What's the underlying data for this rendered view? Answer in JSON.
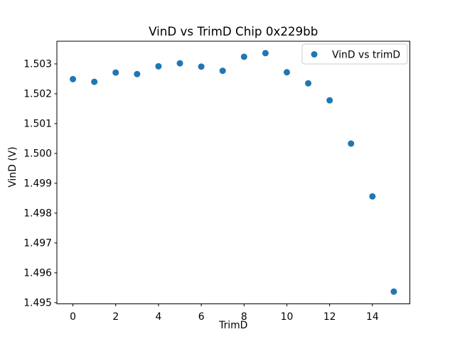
{
  "chart_data": {
    "type": "scatter",
    "title": "VinD vs TrimD Chip 0x229bb",
    "xlabel": "TrimD",
    "ylabel": "VinD (V)",
    "legend": {
      "label": "VinD vs trimD",
      "position": "upper-right"
    },
    "marker_color": "#1f77b4",
    "legend_border_color": "#cccccc",
    "x": [
      0,
      1,
      2,
      3,
      4,
      5,
      6,
      7,
      8,
      9,
      10,
      11,
      12,
      13,
      14,
      15
    ],
    "y": [
      1.50249,
      1.5024,
      1.50271,
      1.50266,
      1.50292,
      1.50302,
      1.50291,
      1.50277,
      1.50324,
      1.50336,
      1.50272,
      1.50235,
      1.50178,
      1.50033,
      1.49856,
      1.49537
    ],
    "xlim": [
      -0.75,
      15.75
    ],
    "ylim": [
      1.49496,
      1.50376
    ],
    "xticks": [
      0,
      2,
      4,
      6,
      8,
      10,
      12,
      14
    ],
    "yticks": [
      1.495,
      1.496,
      1.497,
      1.498,
      1.499,
      1.5,
      1.501,
      1.502,
      1.503
    ],
    "ytick_decimals": 3,
    "grid": false
  }
}
